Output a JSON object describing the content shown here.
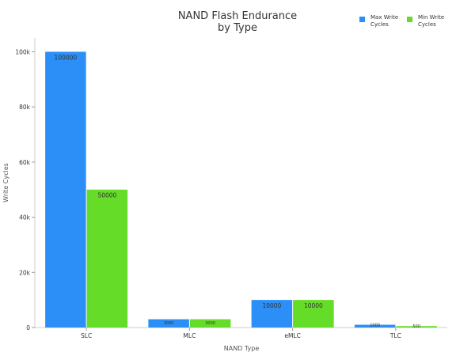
{
  "chart_data": {
    "type": "bar",
    "title_line1": "NAND Flash Endurance",
    "title_line2": "by Type",
    "xlabel": "NAND Type",
    "ylabel": "Write Cycles",
    "categories": [
      "SLC",
      "MLC",
      "eMLC",
      "TLC"
    ],
    "series": [
      {
        "name_line1": "Max Write",
        "name_line2": "Cycles",
        "color": "#2b8ff7",
        "values": [
          100000,
          3000,
          10000,
          1000
        ],
        "labels": [
          "100000",
          "3000",
          "10000",
          "1000"
        ]
      },
      {
        "name_line1": "Min Write",
        "name_line2": "Cycles",
        "color": "#64dc28",
        "values": [
          50000,
          3000,
          10000,
          500
        ],
        "labels": [
          "50000",
          "3000",
          "10000",
          "500"
        ]
      }
    ],
    "ylim": [
      0,
      105000
    ],
    "yticks": [
      0,
      20000,
      40000,
      60000,
      80000,
      100000
    ],
    "ytick_labels": [
      "0",
      "20k",
      "40k",
      "60k",
      "80k",
      "100k"
    ],
    "grid": false,
    "legend_position": "top-right"
  }
}
